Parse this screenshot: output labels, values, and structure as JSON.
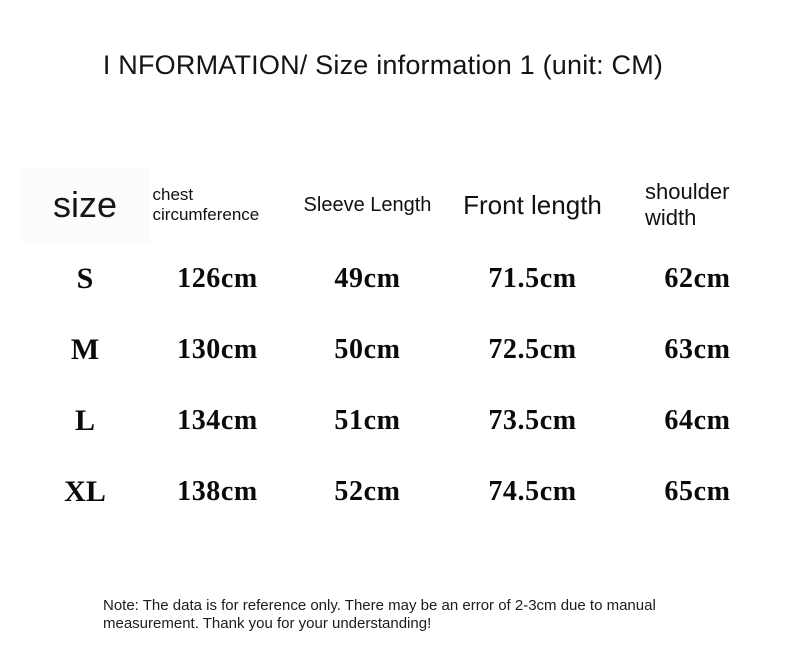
{
  "title": "I NFORMATION/ Size information 1 (unit: CM)",
  "table": {
    "columns": [
      {
        "id": "size",
        "label": "size"
      },
      {
        "id": "chest",
        "label": "chest circumference"
      },
      {
        "id": "sleeve",
        "label": "Sleeve Length"
      },
      {
        "id": "front",
        "label": "Front length"
      },
      {
        "id": "shoulder",
        "label": "shoulder width"
      }
    ],
    "rows": [
      {
        "size": "S",
        "chest": "126cm",
        "sleeve": "49cm",
        "front": "71.5cm",
        "shoulder": "62cm"
      },
      {
        "size": "M",
        "chest": "130cm",
        "sleeve": "50cm",
        "front": "72.5cm",
        "shoulder": "63cm"
      },
      {
        "size": "L",
        "chest": "134cm",
        "sleeve": "51cm",
        "front": "73.5cm",
        "shoulder": "64cm"
      },
      {
        "size": "XL",
        "chest": "138cm",
        "sleeve": "52cm",
        "front": "74.5cm",
        "shoulder": "65cm"
      }
    ]
  },
  "note": "Note: The data is for reference only. There may be an error of 2-3cm due to manual measurement. Thank you for your understanding!",
  "colors": {
    "background": "#ffffff",
    "text": "#000000"
  }
}
